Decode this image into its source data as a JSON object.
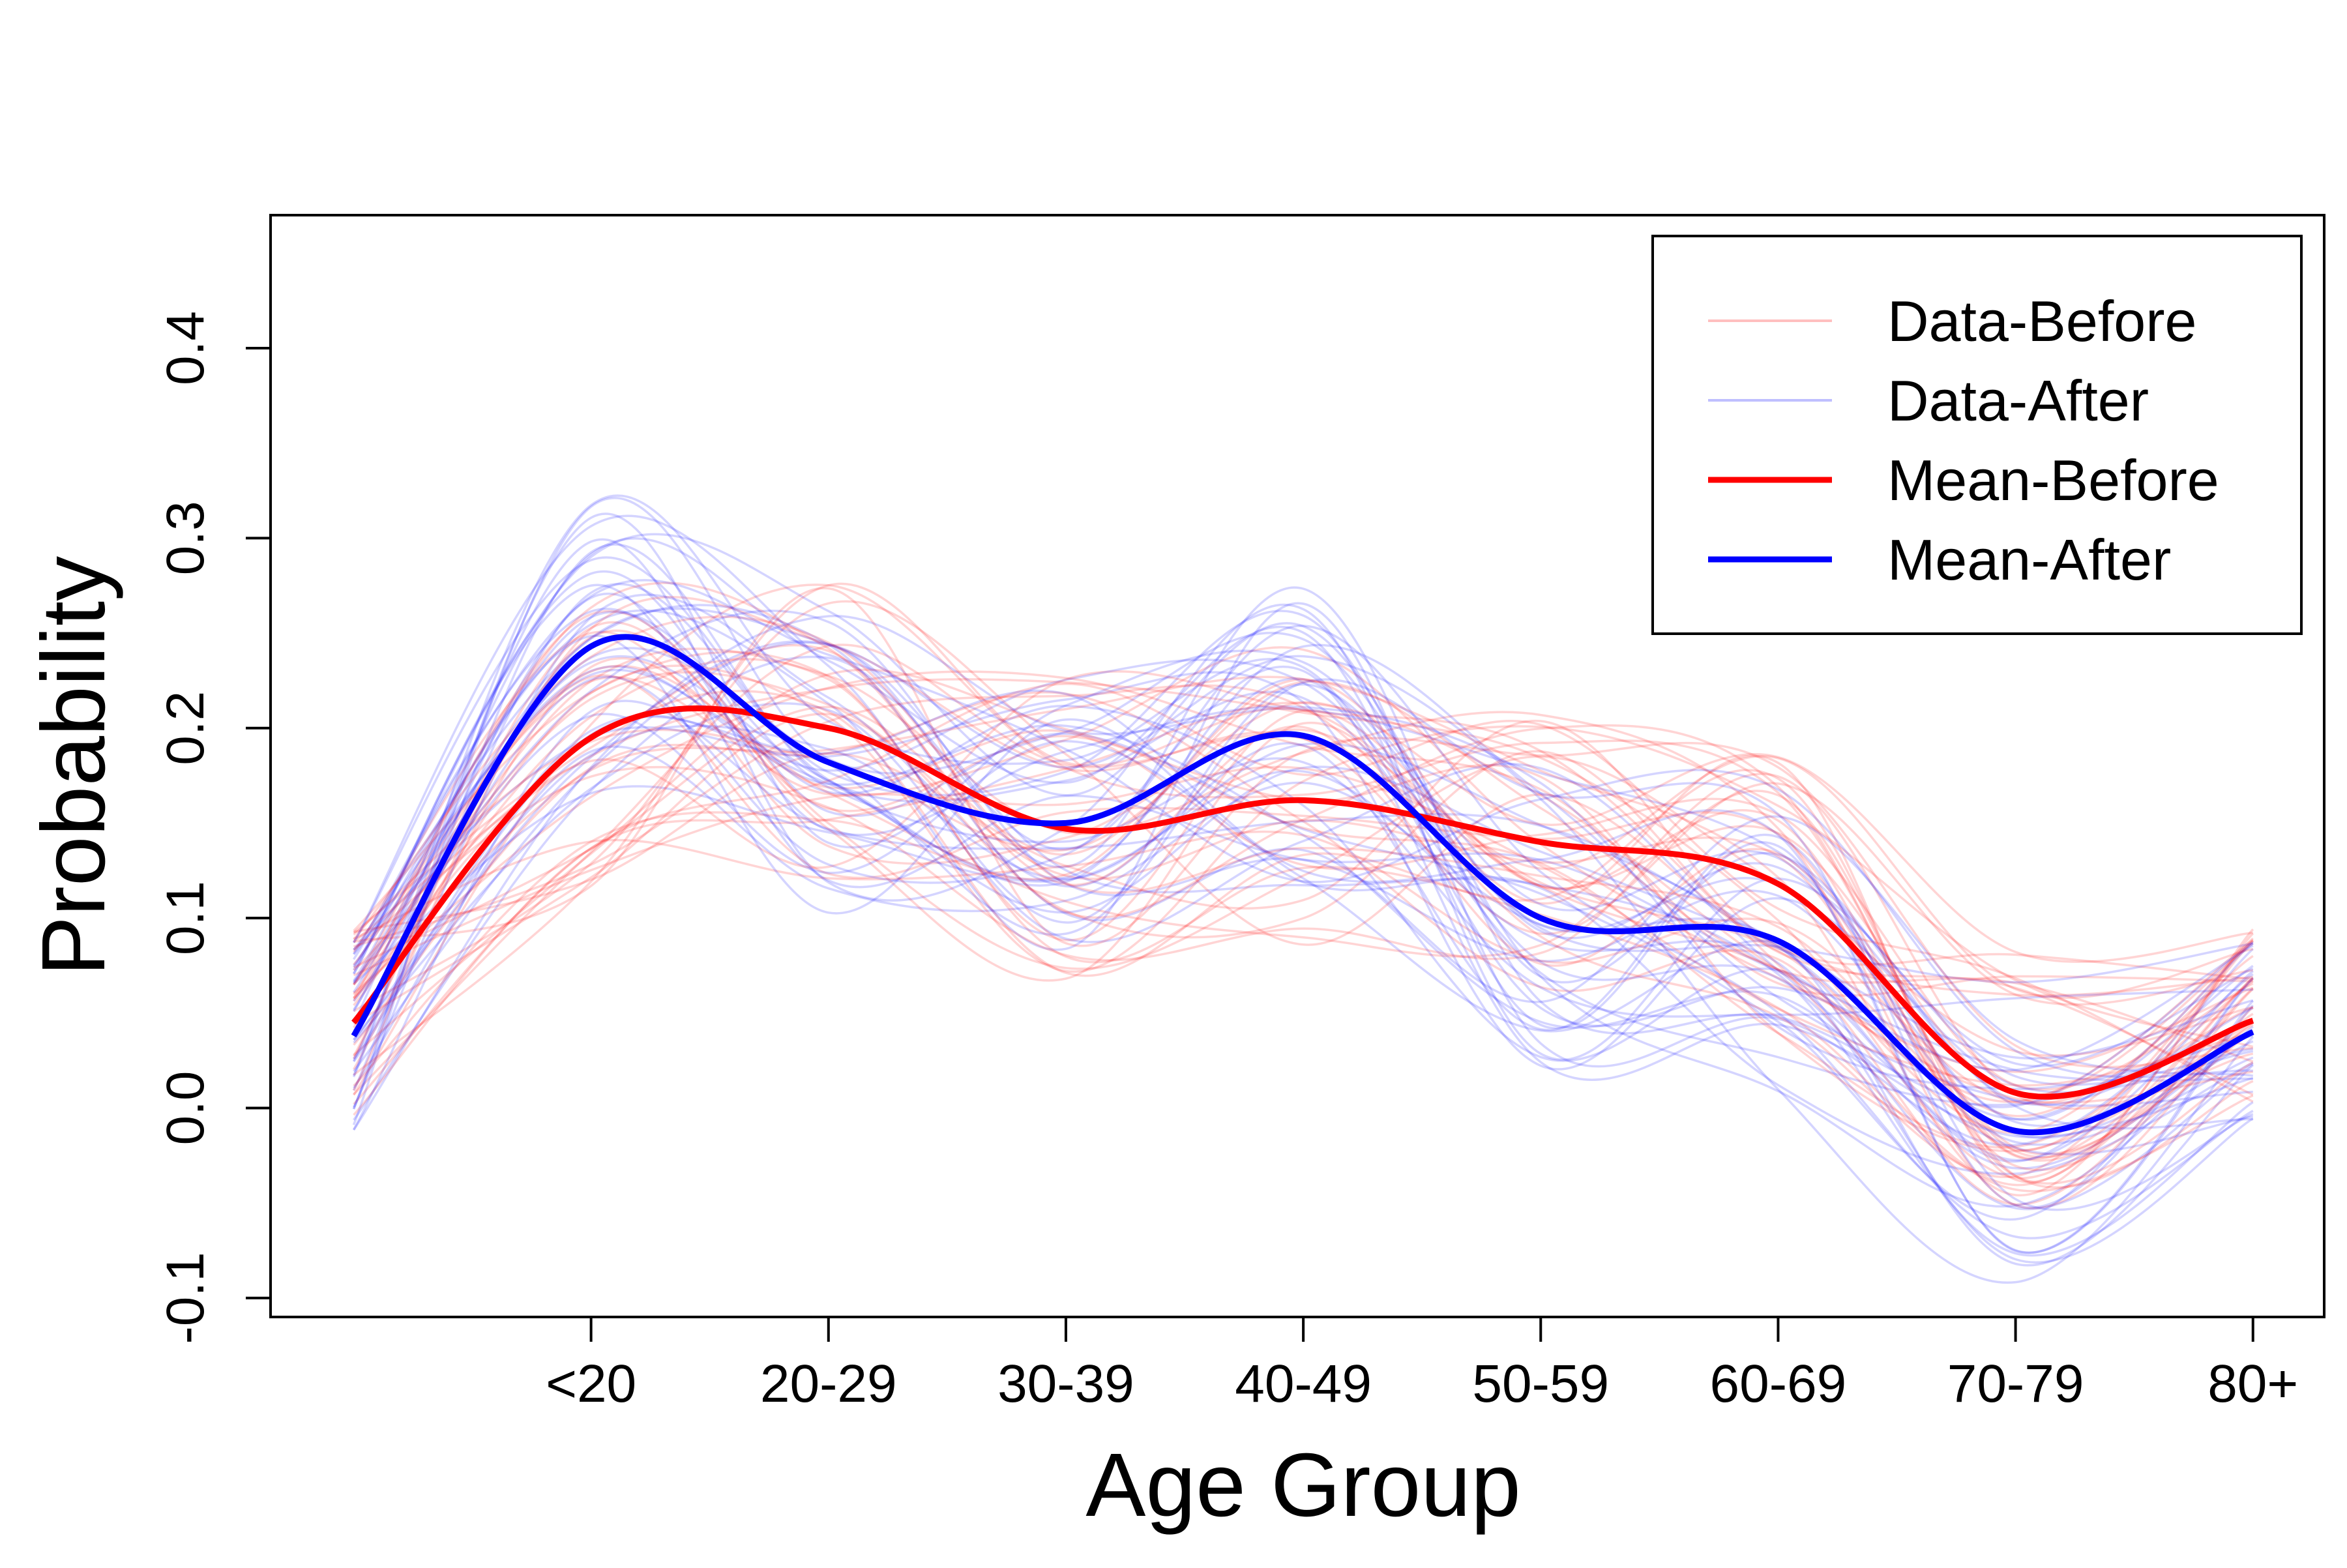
{
  "chart_data": {
    "type": "line",
    "title": "",
    "xlabel": "Age Group",
    "ylabel": "Probability",
    "categories": [
      "<20",
      "20-29",
      "30-39",
      "40-49",
      "50-59",
      "60-69",
      "70-79",
      "80+"
    ],
    "x": [
      0,
      1,
      2,
      3,
      4,
      5,
      6,
      7,
      8
    ],
    "xlim": [
      -0.35,
      8.3
    ],
    "ylim": [
      -0.11,
      0.47
    ],
    "xticks": [
      1,
      2,
      3,
      4,
      5,
      6,
      7,
      8
    ],
    "yticks": [
      -0.1,
      0.0,
      0.1,
      0.2,
      0.3,
      0.4
    ],
    "ytick_labels": [
      "-0.1",
      "0.0",
      "0.1",
      "0.2",
      "0.3",
      "0.4"
    ],
    "legend_position": "top-right",
    "series": [
      {
        "name": "Mean-Before",
        "color": "#ff0000",
        "values": [
          0.045,
          0.195,
          0.2,
          0.147,
          0.162,
          0.14,
          0.118,
          0.008,
          0.046
        ]
      },
      {
        "name": "Mean-After",
        "color": "#0000ff",
        "values": [
          0.038,
          0.243,
          0.182,
          0.15,
          0.196,
          0.1,
          0.088,
          -0.012,
          0.04
        ]
      }
    ],
    "individual_curves": {
      "count_per_group": 40,
      "groups": [
        {
          "name": "Data-Before",
          "color": "#ff0000"
        },
        {
          "name": "Data-After",
          "color": "#0000ff"
        }
      ]
    },
    "legend": [
      {
        "label": "Data-Before",
        "color": "#ff0000",
        "style": "faint"
      },
      {
        "label": "Data-After",
        "color": "#0000ff",
        "style": "faint"
      },
      {
        "label": "Mean-Before",
        "color": "#ff0000",
        "style": "bold"
      },
      {
        "label": "Mean-After",
        "color": "#0000ff",
        "style": "bold"
      }
    ]
  }
}
